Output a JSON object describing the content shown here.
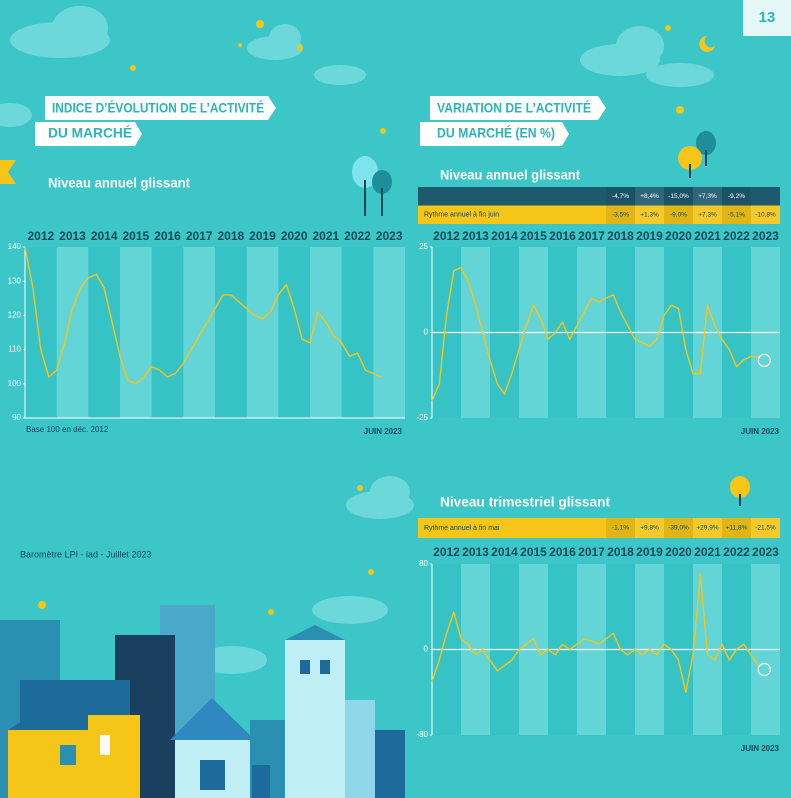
{
  "page_number": "13",
  "sections": [
    {
      "title_lines": [
        "INDICE D’ÉVOLUTION DE L’ACTIVITÉ",
        "DU MARCHÉ"
      ],
      "subtitle": "Niveau annuel glissant"
    },
    {
      "title_lines": [
        "VARIATION DE L’ACTIVITÉ",
        "DU MARCHÉ (EN %)"
      ],
      "subtitle": "Niveau annuel glissant"
    },
    {
      "subtitle": "Niveau trimestriel glissant"
    }
  ],
  "tables": [
    {
      "rows": [
        {
          "cells": [
            "-4,7%",
            "+8,4%",
            "-15,0%",
            "+7,3%",
            "-9,2%"
          ]
        },
        {
          "label": "Rythme annuel à fin juin",
          "cells": [
            "-3,5%",
            "+1,3%",
            "-9,0%",
            "+7,3%",
            "-5,1%",
            "-10,8%"
          ]
        }
      ]
    },
    {
      "rows": [
        {
          "label": "Rythme annuel à fin mai",
          "cells": [
            "-1,1%",
            "+9,8%",
            "-39,0%",
            "+29,9%",
            "+11,8%",
            "-21,5%"
          ]
        }
      ]
    }
  ],
  "footer": "Baromètre LPI - iad - Juillet 2023",
  "chart_data": [
    {
      "type": "line",
      "color": "#f5c518",
      "annotation": "Base 100 en déc. 2012",
      "date_label": "JUIN 2023",
      "x": [
        2012,
        2012.25,
        2012.5,
        2012.75,
        2013,
        2013.25,
        2013.5,
        2013.75,
        2014,
        2014.25,
        2014.5,
        2014.75,
        2015,
        2015.25,
        2015.5,
        2015.75,
        2016,
        2016.25,
        2016.5,
        2016.75,
        2017,
        2017.25,
        2017.5,
        2017.75,
        2018,
        2018.25,
        2018.5,
        2018.75,
        2019,
        2019.25,
        2019.5,
        2019.75,
        2020,
        2020.25,
        2020.5,
        2020.75,
        2021,
        2021.25,
        2021.5,
        2021.75,
        2022,
        2022.25,
        2022.5,
        2022.75,
        2023,
        2023.25
      ],
      "values": [
        140,
        128,
        110,
        102,
        104,
        112,
        122,
        128,
        131,
        132,
        128,
        118,
        108,
        101,
        100,
        102,
        105,
        104,
        102,
        103,
        106,
        110,
        114,
        118,
        122,
        126,
        126,
        124,
        122,
        120,
        119,
        121,
        126,
        129,
        122,
        113,
        112,
        121,
        118,
        114,
        112,
        108,
        109,
        104,
        103,
        102
      ],
      "xlim": [
        2012,
        2024
      ],
      "xticks": [
        2012,
        2013,
        2014,
        2015,
        2016,
        2017,
        2018,
        2019,
        2020,
        2021,
        2022,
        2023
      ],
      "ylim": [
        90,
        140
      ],
      "yticks": [
        90,
        100,
        110,
        120,
        130,
        140
      ]
    },
    {
      "type": "line",
      "color": "#f5c518",
      "date_label": "JUIN 2023",
      "x": [
        2012,
        2012.25,
        2012.5,
        2012.75,
        2013,
        2013.25,
        2013.5,
        2013.75,
        2014,
        2014.25,
        2014.5,
        2014.75,
        2015,
        2015.25,
        2015.5,
        2015.75,
        2016,
        2016.25,
        2016.5,
        2016.75,
        2017,
        2017.25,
        2017.5,
        2017.75,
        2018,
        2018.25,
        2018.5,
        2018.75,
        2019,
        2019.25,
        2019.5,
        2019.75,
        2020,
        2020.25,
        2020.5,
        2020.75,
        2021,
        2021.25,
        2021.5,
        2021.75,
        2022,
        2022.25,
        2022.5,
        2022.75,
        2023,
        2023.25
      ],
      "values": [
        -20,
        -15,
        5,
        18,
        19,
        15,
        8,
        0,
        -8,
        -15,
        -18,
        -12,
        -5,
        2,
        8,
        4,
        -2,
        0,
        3,
        -2,
        2,
        6,
        10,
        9,
        10,
        11,
        6,
        2,
        -2,
        -3,
        -4,
        -2,
        5,
        8,
        7,
        -5,
        -12,
        -12,
        8,
        2,
        -2,
        -5,
        -10,
        -8,
        -7,
        -7
      ],
      "xlim": [
        2012,
        2024
      ],
      "xticks": [
        2012,
        2013,
        2014,
        2015,
        2016,
        2017,
        2018,
        2019,
        2020,
        2021,
        2022,
        2023
      ],
      "ylim": [
        -25,
        25
      ],
      "yticks": [
        -25,
        0,
        25
      ]
    },
    {
      "type": "line",
      "color": "#f5c518",
      "date_label": "JUIN 2023",
      "x": [
        2012,
        2012.25,
        2012.5,
        2012.75,
        2013,
        2013.25,
        2013.5,
        2013.75,
        2014,
        2014.25,
        2014.5,
        2014.75,
        2015,
        2015.25,
        2015.5,
        2015.75,
        2016,
        2016.25,
        2016.5,
        2016.75,
        2017,
        2017.25,
        2017.5,
        2017.75,
        2018,
        2018.25,
        2018.5,
        2018.75,
        2019,
        2019.25,
        2019.5,
        2019.75,
        2020,
        2020.25,
        2020.5,
        2020.75,
        2021,
        2021.25,
        2021.5,
        2021.75,
        2022,
        2022.25,
        2022.5,
        2022.75,
        2023,
        2023.25
      ],
      "values": [
        -30,
        -10,
        15,
        35,
        10,
        5,
        -5,
        0,
        -10,
        -20,
        -15,
        -10,
        0,
        5,
        10,
        -5,
        0,
        -5,
        5,
        0,
        5,
        10,
        8,
        5,
        10,
        15,
        0,
        -5,
        0,
        -5,
        0,
        -5,
        5,
        0,
        -10,
        -40,
        -5,
        70,
        -5,
        -10,
        5,
        -10,
        0,
        5,
        -5,
        -15
      ],
      "xlim": [
        2012,
        2024
      ],
      "xticks": [
        2012,
        2013,
        2014,
        2015,
        2016,
        2017,
        2018,
        2019,
        2020,
        2021,
        2022,
        2023
      ],
      "ylim": [
        -80,
        80
      ],
      "yticks": [
        -80,
        0,
        80
      ]
    }
  ]
}
